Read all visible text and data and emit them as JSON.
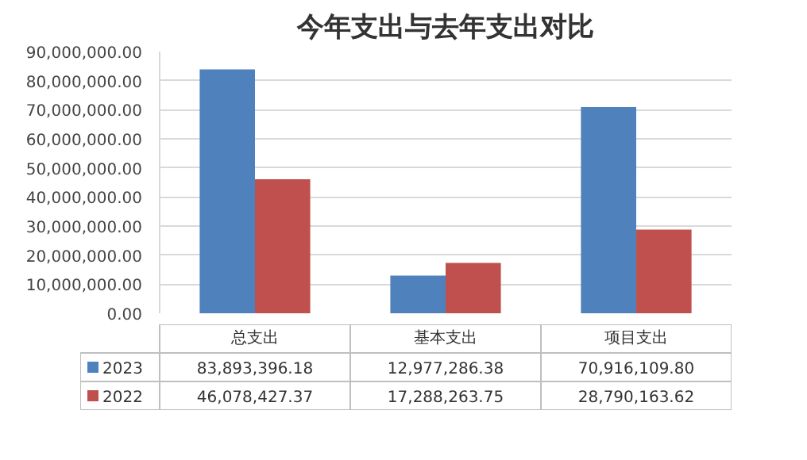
{
  "chart_data": {
    "type": "bar",
    "title": "今年支出与去年支出对比",
    "categories": [
      "总支出",
      "基本支出",
      "项目支出"
    ],
    "series": [
      {
        "name": "2023",
        "color": "#4f81bd",
        "values": [
          83893396.18,
          12977286.38,
          70916109.8
        ],
        "value_labels": [
          "83,893,396.18",
          "12,977,286.38",
          "70,916,109.80"
        ]
      },
      {
        "name": "2022",
        "color": "#c0504d",
        "values": [
          46078427.37,
          17288263.75,
          28790163.62
        ],
        "value_labels": [
          "46,078,427.37",
          "17,288,263.75",
          "28,790,163.62"
        ]
      }
    ],
    "ylim": [
      0,
      90000000
    ],
    "yticks": [
      {
        "value": 0,
        "label": "0.00"
      },
      {
        "value": 10000000,
        "label": "10,000,000.00"
      },
      {
        "value": 20000000,
        "label": "20,000,000.00"
      },
      {
        "value": 30000000,
        "label": "30,000,000.00"
      },
      {
        "value": 40000000,
        "label": "40,000,000.00"
      },
      {
        "value": 50000000,
        "label": "50,000,000.00"
      },
      {
        "value": 60000000,
        "label": "60,000,000.00"
      },
      {
        "value": 70000000,
        "label": "70,000,000.00"
      },
      {
        "value": 80000000,
        "label": "80,000,000.00"
      },
      {
        "value": 90000000,
        "label": "90,000,000.00"
      }
    ],
    "grid": "y",
    "legend": "bottom"
  }
}
